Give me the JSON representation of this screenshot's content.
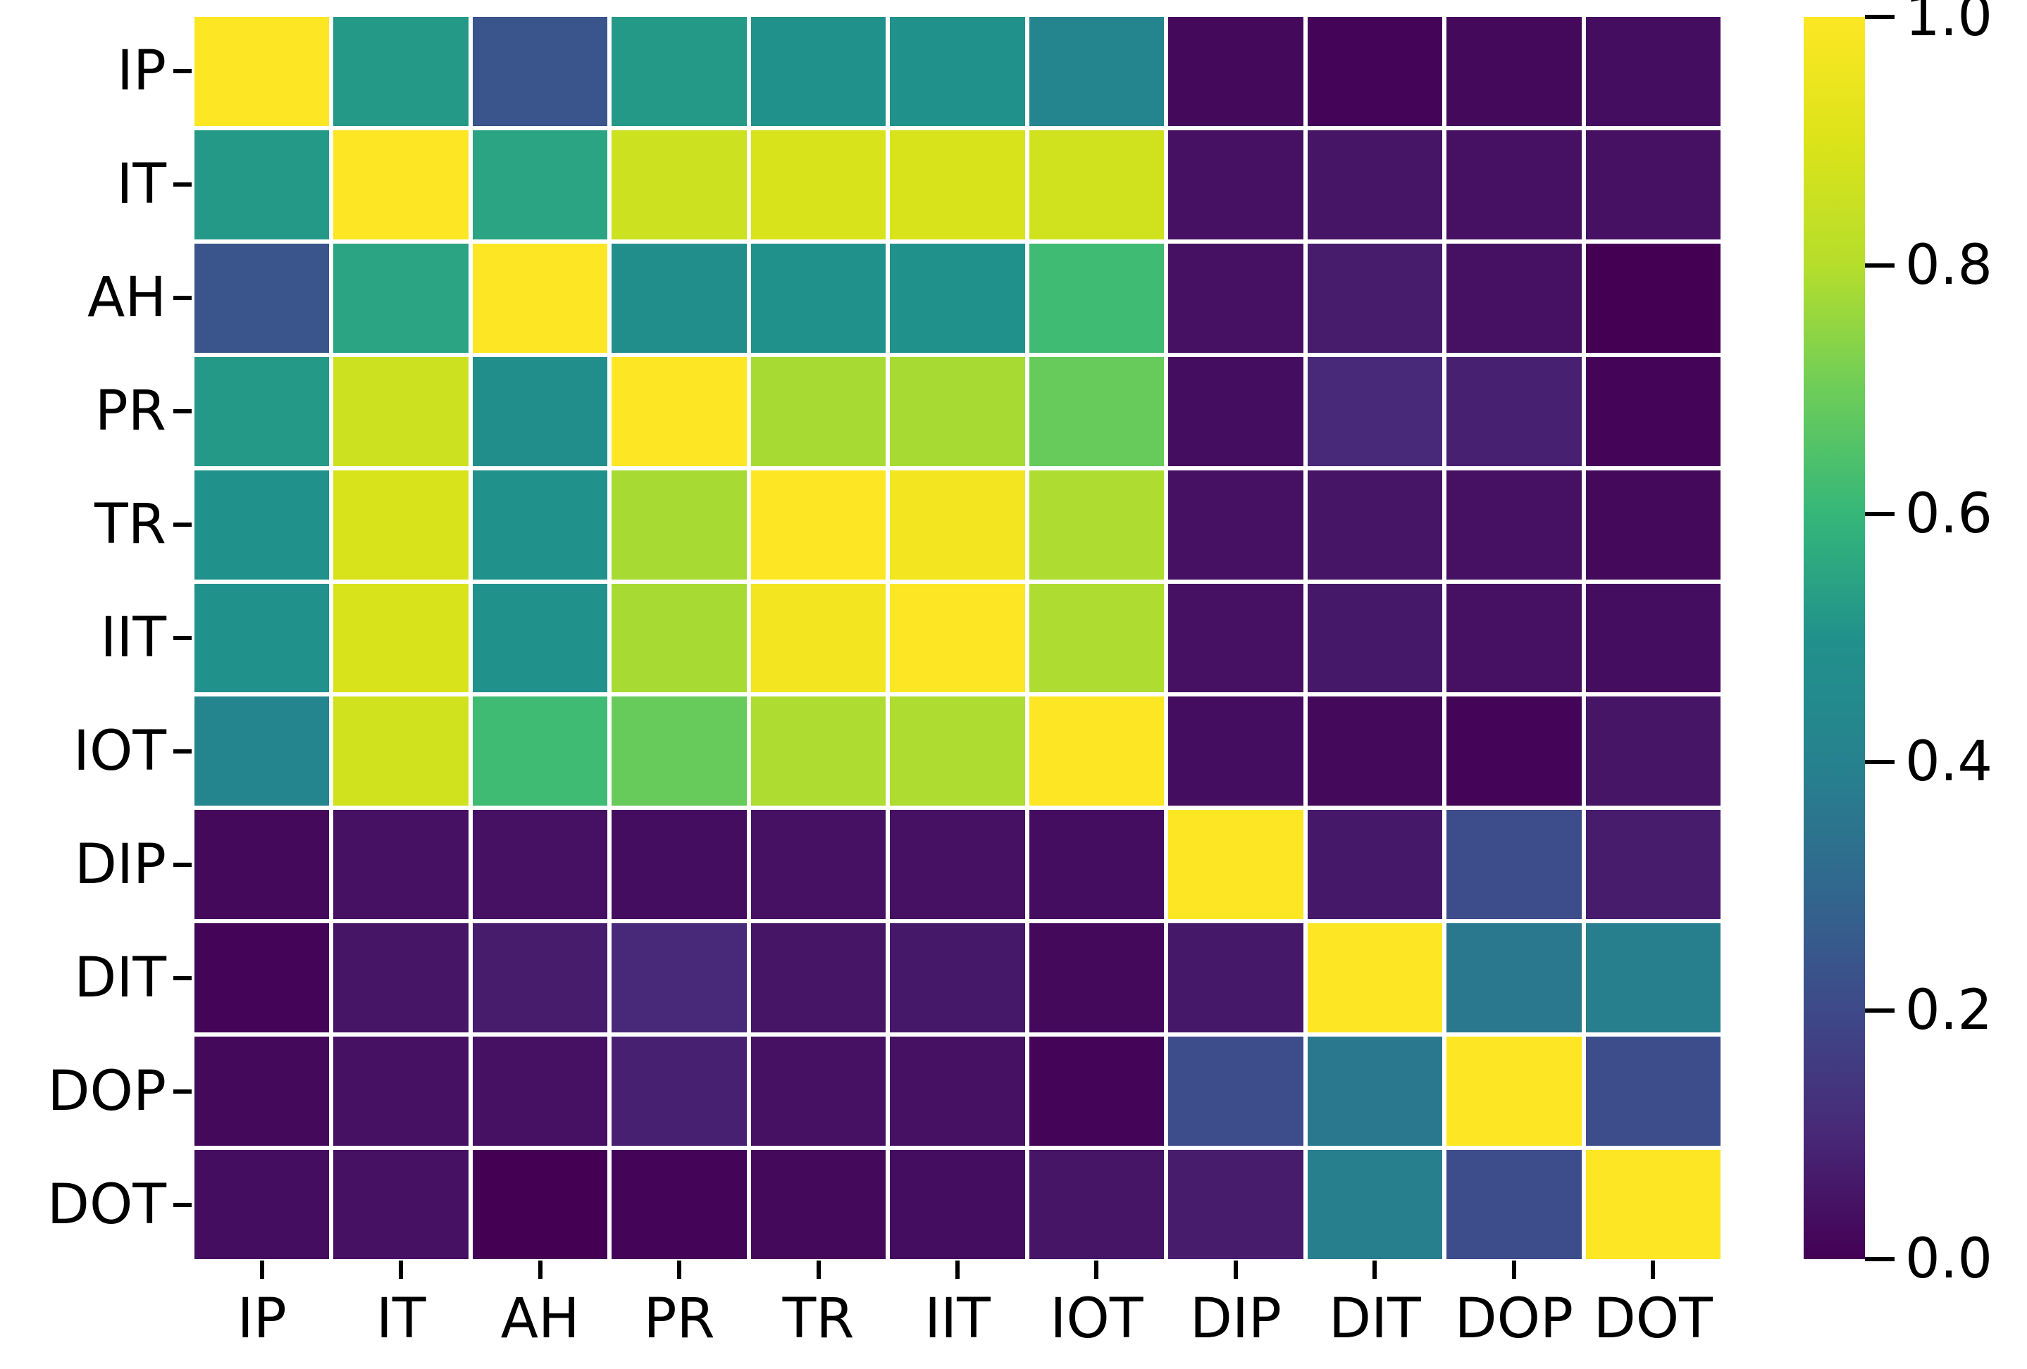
{
  "chart_data": {
    "type": "heatmap",
    "title": "",
    "xlabel": "",
    "ylabel": "",
    "categories": [
      "IP",
      "IT",
      "AH",
      "PR",
      "TR",
      "IIT",
      "IOT",
      "DIP",
      "DIT",
      "DOP",
      "DOT"
    ],
    "x_tick_labels": [
      "IP",
      "IT",
      "AH",
      "PR",
      "TR",
      "IIT",
      "IOT",
      "DIP",
      "DIT",
      "DOP",
      "DOT"
    ],
    "y_tick_labels": [
      "IP",
      "IT",
      "AH",
      "PR",
      "TR",
      "IIT",
      "IOT",
      "DIP",
      "DIT",
      "DOP",
      "DOT"
    ],
    "matrix": [
      [
        1.0,
        0.52,
        0.24,
        0.52,
        0.5,
        0.5,
        0.42,
        0.02,
        0.01,
        0.02,
        0.03
      ],
      [
        0.52,
        1.0,
        0.55,
        0.86,
        0.89,
        0.89,
        0.87,
        0.04,
        0.05,
        0.04,
        0.04
      ],
      [
        0.24,
        0.55,
        1.0,
        0.48,
        0.5,
        0.5,
        0.62,
        0.04,
        0.07,
        0.04,
        0.0
      ],
      [
        0.52,
        0.86,
        0.48,
        1.0,
        0.78,
        0.78,
        0.69,
        0.03,
        0.1,
        0.08,
        0.01
      ],
      [
        0.5,
        0.89,
        0.5,
        0.78,
        1.0,
        0.97,
        0.79,
        0.04,
        0.05,
        0.04,
        0.02
      ],
      [
        0.5,
        0.89,
        0.5,
        0.78,
        0.97,
        1.0,
        0.79,
        0.04,
        0.06,
        0.04,
        0.03
      ],
      [
        0.42,
        0.87,
        0.62,
        0.69,
        0.79,
        0.79,
        1.0,
        0.03,
        0.02,
        0.01,
        0.05
      ],
      [
        0.02,
        0.04,
        0.04,
        0.03,
        0.04,
        0.04,
        0.03,
        1.0,
        0.06,
        0.21,
        0.07
      ],
      [
        0.01,
        0.05,
        0.07,
        0.1,
        0.05,
        0.06,
        0.02,
        0.06,
        1.0,
        0.36,
        0.39
      ],
      [
        0.02,
        0.04,
        0.04,
        0.08,
        0.04,
        0.04,
        0.01,
        0.21,
        0.36,
        1.0,
        0.21
      ],
      [
        0.03,
        0.04,
        0.0,
        0.01,
        0.02,
        0.03,
        0.05,
        0.07,
        0.39,
        0.21,
        1.0
      ]
    ],
    "value_range": [
      0.0,
      1.0
    ],
    "colormap": "viridis",
    "grid": false,
    "legend_position": "right-colorbar",
    "colorbar": {
      "ticks": [
        1.0,
        0.8,
        0.6,
        0.4,
        0.2,
        0.0
      ],
      "tick_labels": [
        "1.0",
        "0.8",
        "0.6",
        "0.4",
        "0.2",
        "0.0"
      ],
      "vmin": 0.0,
      "vmax": 1.0
    },
    "colors": {
      "viridis_stops": [
        "#440154",
        "#482878",
        "#3e4989",
        "#31688e",
        "#26828e",
        "#21918c",
        "#35b779",
        "#6dcd59",
        "#b5de2b",
        "#dce319",
        "#fde725"
      ],
      "background": "#ffffff",
      "cell_gap": "#ffffff",
      "tick": "#000000",
      "label_text": "#000000"
    }
  }
}
